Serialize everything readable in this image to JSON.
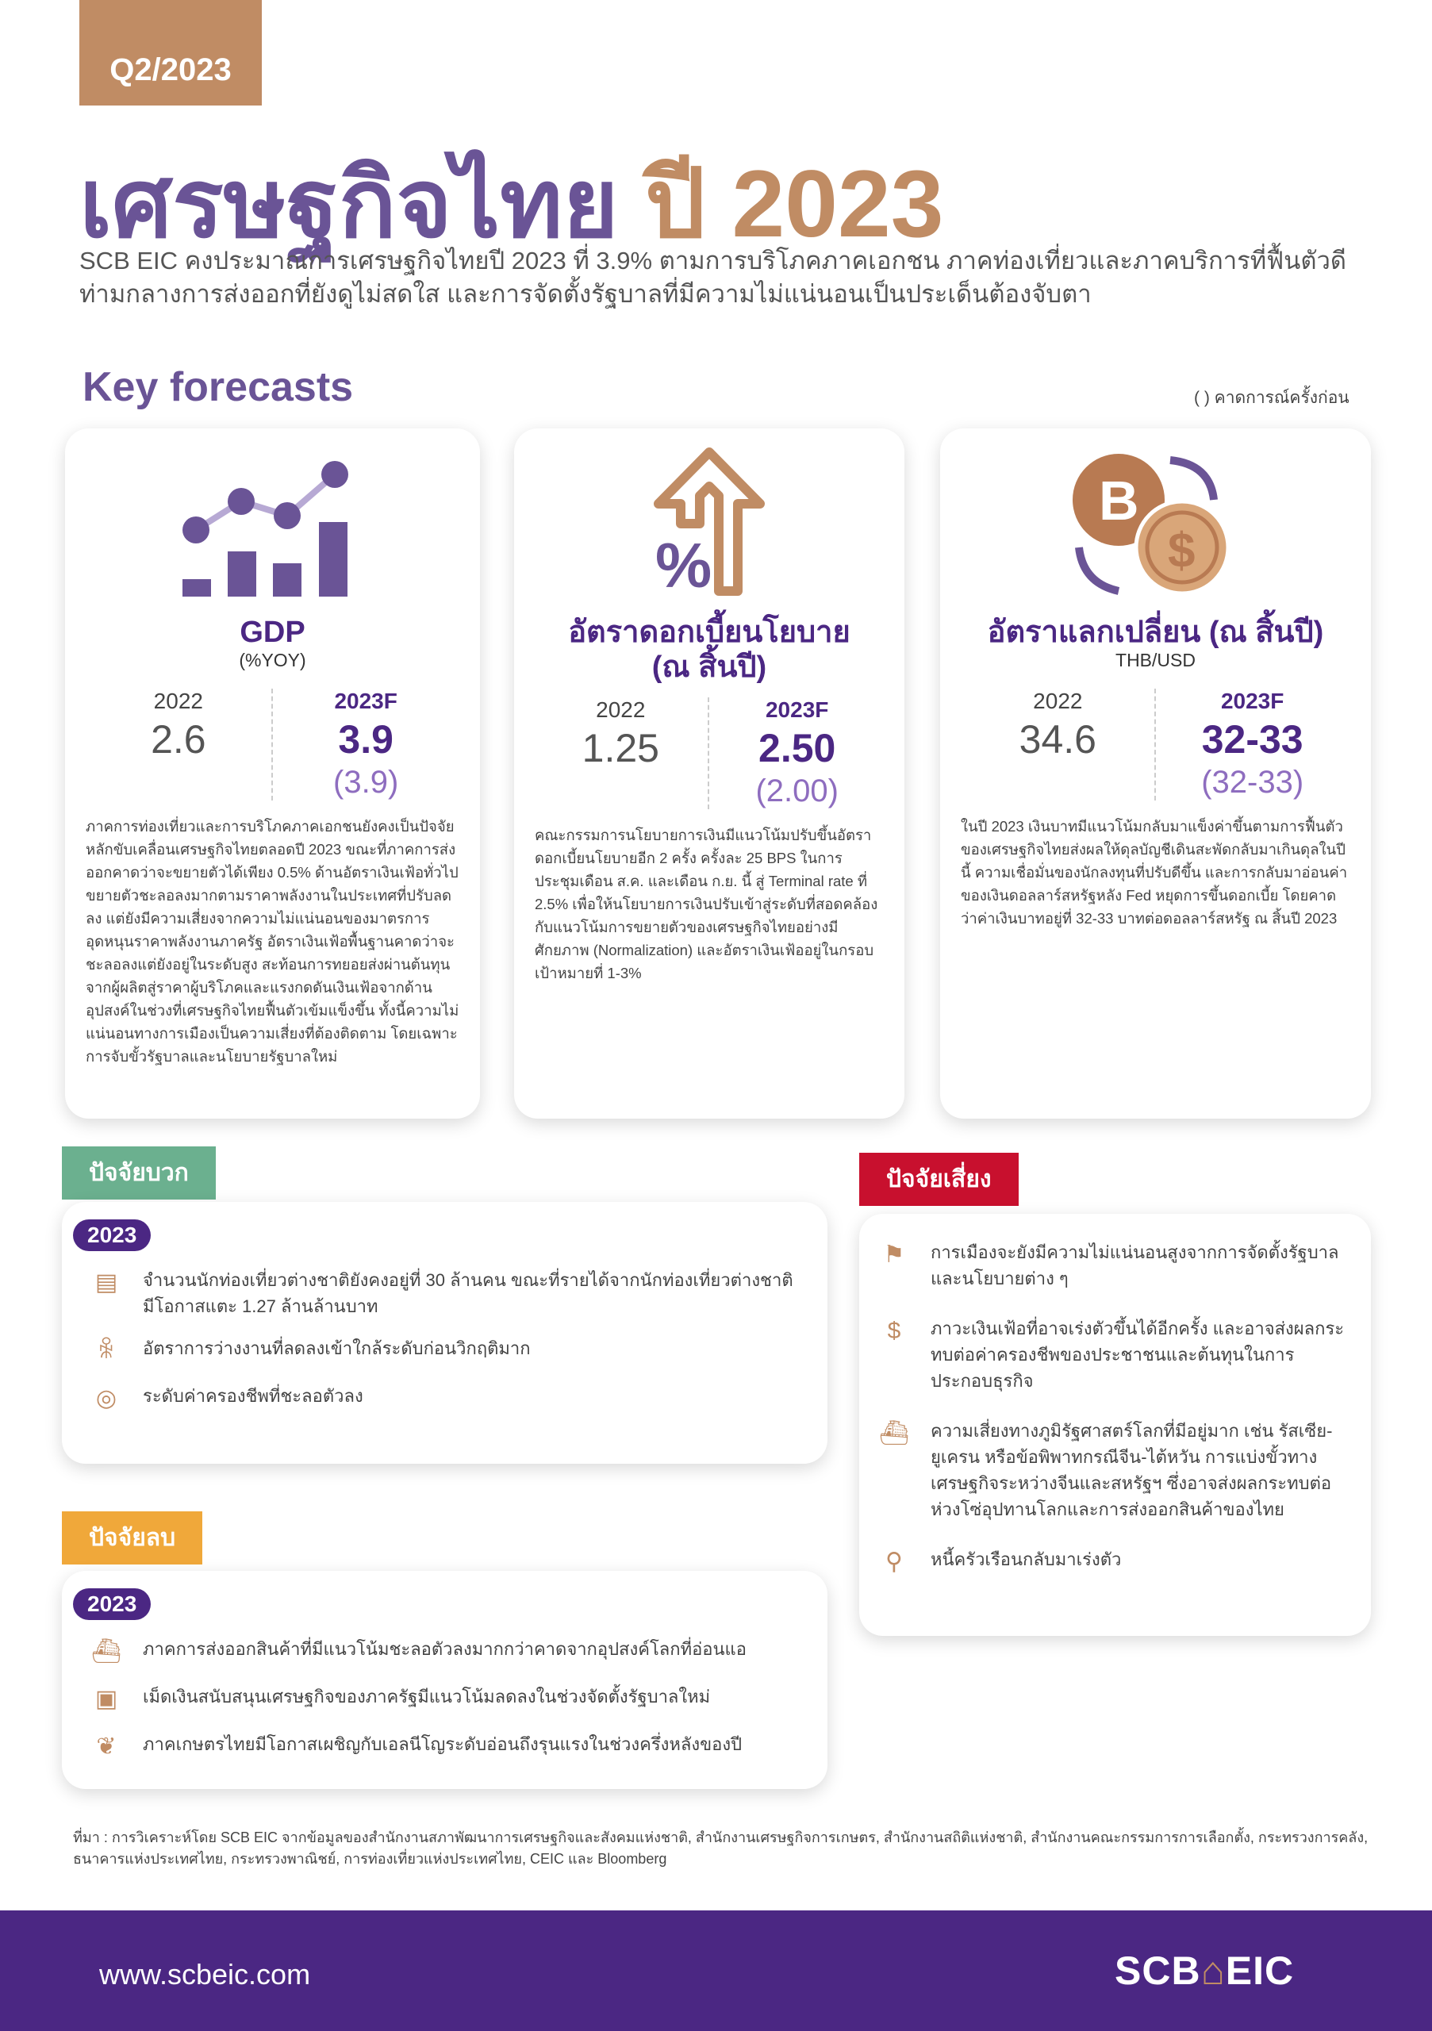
{
  "badge": "Q2/2023",
  "title": {
    "main": "เศรษฐกิจไทย",
    "year": "ปี 2023"
  },
  "subtitle": "SCB EIC คงประมาณการเศรษฐกิจไทยปี 2023 ที่ 3.9% ตามการบริโภคภาคเอกชน ภาคท่องเที่ยวและภาคบริการที่ฟื้นตัวดี ท่ามกลางการส่งออกที่ยังดูไม่สดใส และการจัดตั้งรัฐบาลที่มีความไม่แน่นอนเป็นประเด็นต้องจับตา",
  "key_forecasts": {
    "heading": "Key forecasts",
    "legend": "( )  คาดการณ์ครั้งก่อน",
    "cards": [
      {
        "icon": "bar-chart-icon",
        "title": "GDP",
        "unit": "(%YOY)",
        "y1": "2022",
        "v1": "2.6",
        "y2": "2023F",
        "v2": "3.9",
        "prev": "(3.9)",
        "text": "ภาคการท่องเที่ยวและการบริโภคภาคเอกชนยังคงเป็นปัจจัยหลักขับเคลื่อนเศรษฐกิจไทยตลอดปี 2023 ขณะที่ภาคการส่งออกคาดว่าจะขยายตัวได้เพียง 0.5% ด้านอัตราเงินเฟ้อทั่วไปขยายตัวชะลอลงมากตามราคาพลังงานในประเทศที่ปรับลดลง แต่ยังมีความเสี่ยงจากความไม่แน่นอนของมาตรการอุดหนุนราคาพลังงานภาครัฐ อัตราเงินเฟ้อพื้นฐานคาดว่าจะชะลอลงแต่ยังอยู่ในระดับสูง สะท้อนการทยอยส่งผ่านต้นทุนจากผู้ผลิตสู่ราคาผู้บริโภคและแรงกดดันเงินเฟ้อจากด้านอุปสงค์ในช่วงที่เศรษฐกิจไทยฟื้นตัวเข้มแข็งขึ้น ทั้งนี้ความไม่แน่นอนทางการเมืองเป็นความเสี่ยงที่ต้องติดตาม โดยเฉพาะการจับขั้วรัฐบาลและนโยบายรัฐบาลใหม่"
      },
      {
        "icon": "percent-arrow-up-icon",
        "title": "อัตราดอกเบี้ยนโยบาย (ณ สิ้นปี)",
        "unit": "",
        "y1": "2022",
        "v1": "1.25",
        "y2": "2023F",
        "v2": "2.50",
        "prev": "(2.00)",
        "text": "คณะกรรมการนโยบายการเงินมีแนวโน้มปรับขึ้นอัตราดอกเบี้ยนโยบายอีก 2 ครั้ง ครั้งละ 25 BPS ในการประชุมเดือน ส.ค. และเดือน ก.ย. นี้ สู่ Terminal rate ที่ 2.5% เพื่อให้นโยบายการเงินปรับเข้าสู่ระดับที่สอดคล้องกับแนวโน้มการขยายตัวของเศรษฐกิจไทยอย่างมีศักยภาพ (Normalization) และอัตราเงินเฟ้ออยู่ในกรอบเป้าหมายที่ 1-3%"
      },
      {
        "icon": "currency-exchange-icon",
        "title": "อัตราแลกเปลี่ยน (ณ สิ้นปี)",
        "unit": "THB/USD",
        "y1": "2022",
        "v1": "34.6",
        "y2": "2023F",
        "v2": "32-33",
        "prev": "(32-33)",
        "text": "ในปี 2023 เงินบาทมีแนวโน้มกลับมาแข็งค่าขึ้นตามการฟื้นตัวของเศรษฐกิจไทยส่งผลให้ดุลบัญชีเดินสะพัดกลับมาเกินดุลในปีนี้ ความเชื่อมั่นของนักลงทุนที่ปรับดีขึ้น และการกลับมาอ่อนค่าของเงินดอลลาร์สหรัฐหลัง Fed หยุดการขึ้นดอกเบี้ย โดยคาดว่าค่าเงินบาทอยู่ที่ 32-33 บาทต่อดอลลาร์สหรัฐ ณ สิ้นปี 2023"
      }
    ]
  },
  "positive": {
    "label": "ปัจจัยบวก",
    "year": "2023",
    "color": "#6bb08f",
    "items": [
      {
        "icon": "tourism-money-icon",
        "text": "จำนวนนักท่องเที่ยวต่างชาติยังคงอยู่ที่ 30 ล้านคน ขณะที่รายได้จากนักท่องเที่ยวต่างชาติมีโอกาสแตะ 1.27 ล้านล้านบาท"
      },
      {
        "icon": "people-icon",
        "text": "อัตราการว่างงานที่ลดลงเข้าใกล้ระดับก่อนวิกฤติมาก"
      },
      {
        "icon": "coins-icon",
        "text": "ระดับค่าครองชีพที่ชะลอตัวลง"
      }
    ]
  },
  "negative": {
    "label": "ปัจจัยลบ",
    "year": "2023",
    "color": "#f0a83a",
    "items": [
      {
        "icon": "cargo-ship-icon",
        "text": "ภาคการส่งออกสินค้าที่มีแนวโน้มชะลอตัวลงมากกว่าคาดจากอุปสงค์โลกที่อ่อนแอ"
      },
      {
        "icon": "money-check-icon",
        "text": "เม็ดเงินสนับสนุนเศรษฐกิจของภาครัฐมีแนวโน้มลดลงในช่วงจัดตั้งรัฐบาลใหม่"
      },
      {
        "icon": "plant-icon",
        "text": "ภาคเกษตรไทยมีโอกาสเผชิญกับเอลนีโญระดับอ่อนถึงรุนแรงในช่วงครึ่งหลังของปี"
      }
    ]
  },
  "risks": {
    "label": "ปัจจัยเสี่ยง",
    "color": "#c8102e",
    "items": [
      {
        "icon": "protest-icon",
        "text": "การเมืองจะยังมีความไม่แน่นอนสูงจากการจัดตั้งรัฐบาลและนโยบายต่าง ๆ"
      },
      {
        "icon": "money-hand-icon",
        "text": "ภาวะเงินเฟ้อที่อาจเร่งตัวขึ้นได้อีกครั้ง และอาจส่งผลกระทบต่อค่าครองชีพของประชาชนและต้นทุนในการประกอบธุรกิจ"
      },
      {
        "icon": "ship-icon",
        "text": "ความเสี่ยงทางภูมิรัฐศาสตร์โลกที่มีอยู่มาก เช่น รัสเซีย-ยูเครน หรือข้อพิพาทกรณีจีน-ไต้หวัน การแบ่งขั้วทางเศรษฐกิจระหว่างจีนและสหรัฐฯ ซึ่งอาจส่งผลกระทบต่อห่วงโซ่อุปทานโลกและการส่งออกสินค้าของไทย"
      },
      {
        "icon": "debt-bag-icon",
        "text": "หนี้ครัวเรือนกลับมาเร่งตัว"
      }
    ]
  },
  "source": "ที่มา : การวิเคราะห์โดย SCB EIC จากข้อมูลของสำนักงานสภาพัฒนาการเศรษฐกิจและสังคมแห่งชาติ, สำนักงานเศรษฐกิจการเกษตร, สำนักงานสถิติแห่งชาติ, สำนักงานคณะกรรมการการเลือกตั้ง, กระทรวงการคลัง, ธนาคารแห่งประเทศไทย, กระทรวงพาณิชย์, การท่องเที่ยวแห่งประเทศไทย, CEIC และ Bloomberg",
  "footer": {
    "url": "www.scbeic.com",
    "logo": "SCB EIC"
  },
  "colors": {
    "purple": "#4b2783",
    "gold": "#c08c64",
    "title_purple": "#6a5496"
  }
}
